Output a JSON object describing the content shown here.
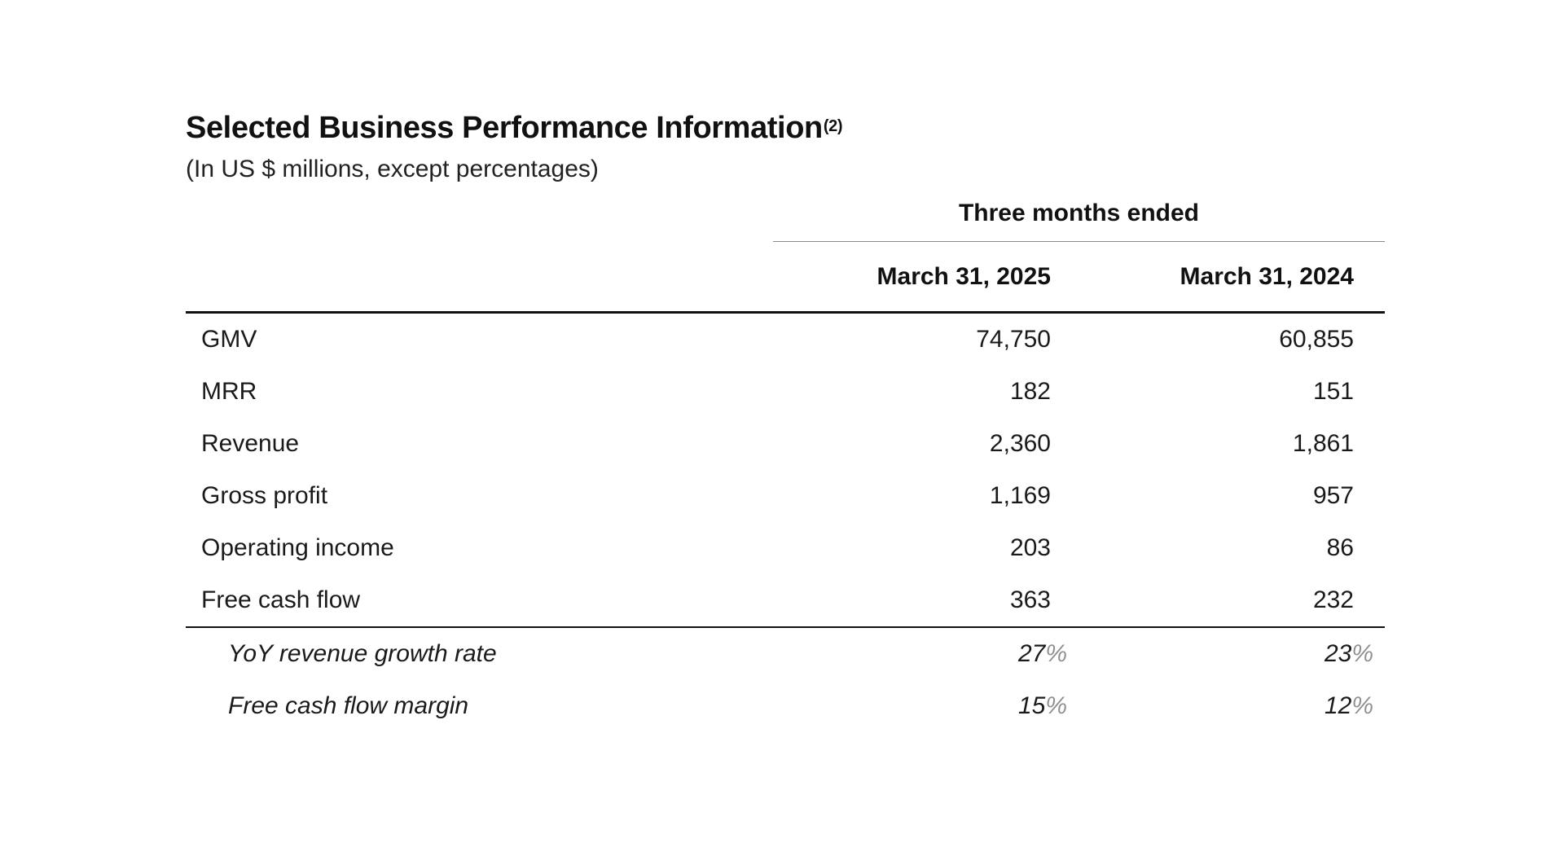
{
  "document": {
    "title": "Selected Business Performance Information",
    "title_footnote": "(2)",
    "subtitle": "(In US $ millions, except percentages)"
  },
  "table": {
    "period_header": "Three months ended",
    "columns": [
      "March 31, 2025",
      "March 31, 2024"
    ],
    "rows": [
      {
        "label": "GMV",
        "values": [
          "74,750",
          "60,855"
        ]
      },
      {
        "label": "MRR",
        "values": [
          "182",
          "151"
        ]
      },
      {
        "label": "Revenue",
        "values": [
          "2,360",
          "1,861"
        ]
      },
      {
        "label": "Gross profit",
        "values": [
          "1,169",
          "957"
        ]
      },
      {
        "label": "Operating income",
        "values": [
          "203",
          "86"
        ]
      },
      {
        "label": "Free cash flow",
        "values": [
          "363",
          "232"
        ]
      }
    ],
    "percentage_rows": [
      {
        "label": "YoY revenue growth rate",
        "values": [
          "27",
          "23"
        ],
        "unit": "%"
      },
      {
        "label": "Free cash flow margin",
        "values": [
          "15",
          "12"
        ],
        "unit": "%"
      }
    ]
  },
  "colors": {
    "text": "#1a1a1a",
    "rule": "#111111",
    "thin_rule": "#8a8a8a",
    "percent_sign": "#8f8f8f"
  }
}
